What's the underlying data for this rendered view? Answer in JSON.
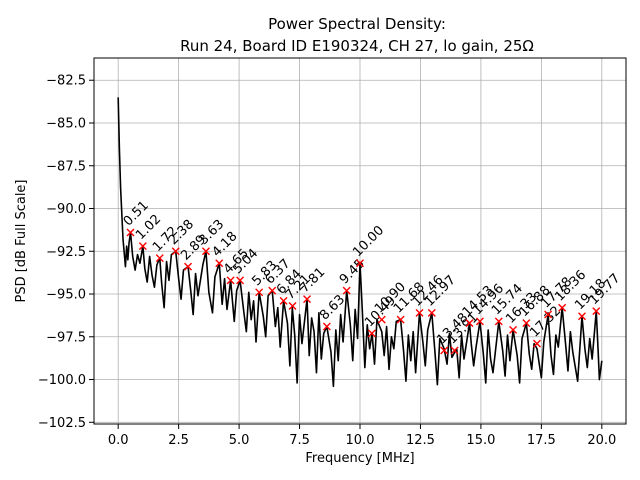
{
  "chart_data": {
    "type": "line",
    "title_lines": [
      "Power Spectral Density:",
      "Run 24, Board ID E190324, CH 27, lo gain, 25Ω"
    ],
    "xlabel": "Frequency [MHz]",
    "ylabel": "PSD [dB Full Scale]",
    "xlim": [
      -1.0,
      21.0
    ],
    "ylim": [
      -102.6,
      -81.2
    ],
    "x_ticks": [
      0.0,
      2.5,
      5.0,
      7.5,
      10.0,
      12.5,
      15.0,
      17.5,
      20.0
    ],
    "x_tick_labels": [
      "0.0",
      "2.5",
      "5.0",
      "7.5",
      "10.0",
      "12.5",
      "15.0",
      "17.5",
      "20.0"
    ],
    "y_ticks": [
      -82.5,
      -85.0,
      -87.5,
      -90.0,
      -92.5,
      -95.0,
      -97.5,
      -100.0,
      -102.5
    ],
    "y_tick_labels": [
      "−82.5",
      "−85.0",
      "−87.5",
      "−90.0",
      "−92.5",
      "−95.0",
      "−97.5",
      "−100.0",
      "−102.5"
    ],
    "grid": true,
    "line_color": "#000000",
    "marker_color": "#ff0000",
    "series": [
      {
        "x": [
          0.0,
          0.05,
          0.1,
          0.15,
          0.2,
          0.25,
          0.3,
          0.35,
          0.4,
          0.45,
          0.51,
          0.6,
          0.7,
          0.8,
          0.9,
          1.02,
          1.1,
          1.2,
          1.3,
          1.4,
          1.5,
          1.6,
          1.72,
          1.8,
          1.9,
          2.0,
          2.1,
          2.2,
          2.38,
          2.5,
          2.6,
          2.7,
          2.89,
          3.0,
          3.1,
          3.2,
          3.3,
          3.4,
          3.5,
          3.63,
          3.75,
          3.9,
          4.0,
          4.18,
          4.3,
          4.4,
          4.5,
          4.65,
          4.8,
          4.9,
          5.04,
          5.2,
          5.3,
          5.4,
          5.5,
          5.6,
          5.7,
          5.83,
          6.0,
          6.1,
          6.2,
          6.37,
          6.5,
          6.6,
          6.7,
          6.84,
          7.0,
          7.1,
          7.2,
          7.3,
          7.4,
          7.5,
          7.6,
          7.81,
          7.9,
          8.0,
          8.1,
          8.2,
          8.3,
          8.4,
          8.5,
          8.63,
          8.8,
          8.9,
          9.0,
          9.1,
          9.2,
          9.3,
          9.45,
          9.6,
          9.7,
          9.8,
          9.9,
          10.0,
          10.1,
          10.2,
          10.3,
          10.4,
          10.5,
          10.6,
          10.7,
          10.9,
          11.0,
          11.1,
          11.2,
          11.3,
          11.4,
          11.5,
          11.68,
          11.8,
          11.9,
          12.0,
          12.1,
          12.2,
          12.3,
          12.46,
          12.6,
          12.7,
          12.8,
          12.97,
          13.1,
          13.2,
          13.3,
          13.48,
          13.6,
          13.7,
          13.8,
          14.0,
          14.1,
          14.2,
          14.3,
          14.53,
          14.6,
          14.7,
          14.8,
          14.96,
          15.1,
          15.2,
          15.3,
          15.4,
          15.5,
          15.74,
          15.9,
          16.0,
          16.1,
          16.2,
          16.33,
          16.5,
          16.6,
          16.7,
          16.88,
          17.0,
          17.1,
          17.2,
          17.32,
          17.5,
          17.6,
          17.78,
          17.9,
          18.0,
          18.1,
          18.2,
          18.36,
          18.5,
          18.6,
          18.7,
          18.8,
          19.0,
          19.18,
          19.3,
          19.4,
          19.5,
          19.6,
          19.77,
          19.85,
          19.9,
          20.0
        ],
        "y": [
          -83.5,
          -86.5,
          -88.8,
          -90.3,
          -91.8,
          -92.6,
          -93.4,
          -92.2,
          -93.0,
          -92.0,
          -91.4,
          -92.8,
          -93.6,
          -92.7,
          -93.2,
          -92.2,
          -93.5,
          -94.3,
          -92.8,
          -93.9,
          -94.6,
          -93.3,
          -92.9,
          -94.4,
          -95.8,
          -93.1,
          -94.2,
          -92.7,
          -92.5,
          -94.1,
          -95.3,
          -93.6,
          -93.4,
          -94.8,
          -96.2,
          -93.8,
          -95.1,
          -94.2,
          -93.3,
          -92.5,
          -94.9,
          -96.1,
          -94.0,
          -93.2,
          -95.6,
          -94.1,
          -95.9,
          -94.2,
          -96.6,
          -94.8,
          -94.2,
          -96.1,
          -97.2,
          -94.9,
          -96.5,
          -95.4,
          -97.8,
          -94.9,
          -96.3,
          -97.5,
          -95.1,
          -94.8,
          -96.9,
          -95.8,
          -98.1,
          -95.4,
          -96.7,
          -99.2,
          -95.8,
          -97.4,
          -100.2,
          -96.2,
          -97.9,
          -95.3,
          -98.6,
          -96.4,
          -97.2,
          -99.6,
          -96.1,
          -98.8,
          -97.3,
          -96.9,
          -98.4,
          -100.4,
          -97.1,
          -98.9,
          -96.2,
          -97.8,
          -94.8,
          -96.8,
          -98.9,
          -95.9,
          -97.6,
          -93.2,
          -96.1,
          -99.3,
          -96.8,
          -98.2,
          -97.3,
          -99.1,
          -96.5,
          -97.2,
          -98.6,
          -96.9,
          -99.4,
          -97.5,
          -98.2,
          -96.6,
          -96.5,
          -98.3,
          -100.1,
          -97.4,
          -98.9,
          -97.2,
          -99.6,
          -96.1,
          -97.8,
          -99.2,
          -97.1,
          -96.1,
          -98.4,
          -100.3,
          -97.6,
          -98.2,
          -99.1,
          -97.3,
          -98.7,
          -98.2,
          -99.9,
          -97.4,
          -98.8,
          -96.7,
          -97.9,
          -99.2,
          -98.1,
          -96.6,
          -98.5,
          -100.2,
          -97.1,
          -98.8,
          -99.6,
          -96.6,
          -98.3,
          -99.8,
          -97.4,
          -98.9,
          -97.1,
          -98.6,
          -100.2,
          -97.6,
          -96.7,
          -98.5,
          -99.4,
          -97.9,
          -98.2,
          -99.9,
          -97.8,
          -96.2,
          -98.6,
          -99.7,
          -97.4,
          -98.1,
          -95.8,
          -97.9,
          -99.5,
          -97.2,
          -98.4,
          -100.1,
          -96.3,
          -98.2,
          -99.3,
          -97.6,
          -98.8,
          -96.0,
          -98.4,
          -100.0,
          -98.9
        ]
      }
    ],
    "peaks": {
      "x": [
        0.51,
        1.02,
        1.72,
        2.38,
        2.89,
        3.63,
        4.18,
        4.65,
        5.04,
        5.83,
        6.37,
        6.84,
        7.21,
        7.81,
        8.63,
        9.45,
        10.0,
        10.49,
        10.9,
        11.68,
        12.46,
        12.97,
        13.48,
        13.91,
        14.53,
        14.96,
        15.74,
        16.33,
        16.88,
        17.32,
        17.78,
        18.36,
        19.18,
        19.77
      ],
      "y": [
        -91.4,
        -92.2,
        -92.9,
        -92.5,
        -93.4,
        -92.5,
        -93.2,
        -94.2,
        -94.2,
        -94.9,
        -94.8,
        -95.4,
        -95.7,
        -95.3,
        -96.9,
        -94.8,
        -93.2,
        -97.3,
        -96.5,
        -96.5,
        -96.1,
        -96.1,
        -98.3,
        -98.3,
        -96.7,
        -96.6,
        -96.6,
        -97.1,
        -96.7,
        -97.9,
        -96.2,
        -95.8,
        -96.3,
        -96.0
      ],
      "labels": [
        "0.51",
        "1.02",
        "1.72",
        "2.38",
        "2.89",
        "3.63",
        "4.18",
        "4.65",
        "5.04",
        "5.83",
        "6.37",
        "6.84",
        "7.21",
        "7.81",
        "8.63",
        "9.45",
        "10.00",
        "10.49",
        "10.90",
        "11.68",
        "12.46",
        "12.97",
        "13.48",
        "13.91",
        "14.53",
        "14.96",
        "15.74",
        "16.33",
        "16.88",
        "17.32",
        "17.78",
        "18.36",
        "19.18",
        "19.77"
      ]
    }
  }
}
